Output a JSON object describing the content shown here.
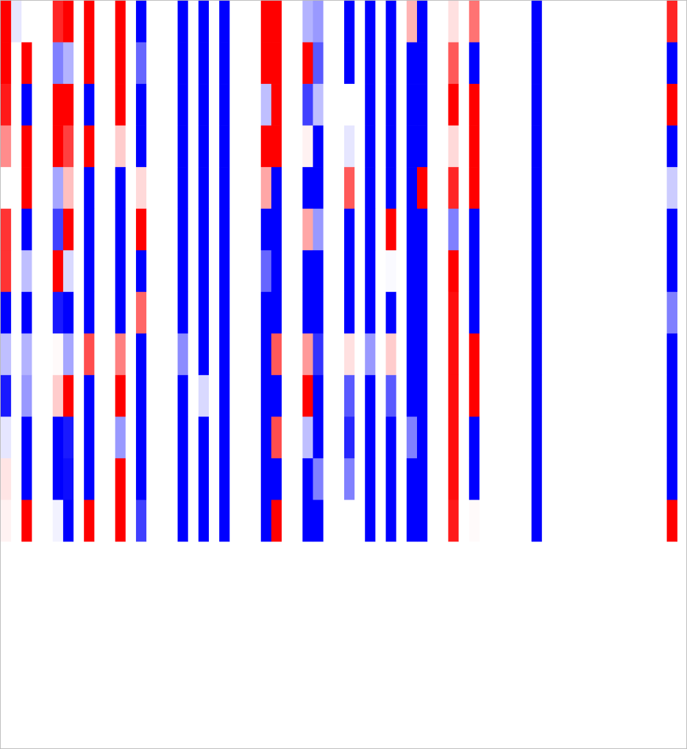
{
  "chart_data": {
    "type": "heatmap",
    "colormap": [
      "#0000ff",
      "#ffffff",
      "#ff0000"
    ],
    "clim": [
      -1,
      1
    ],
    "z": [
      [
        1,
        -0.1,
        0,
        0,
        0,
        0.85,
        1,
        0,
        1,
        0,
        0,
        1,
        0,
        -1,
        0,
        0,
        0,
        -1,
        0,
        -1,
        0,
        -1,
        0,
        0,
        0,
        1,
        1,
        0,
        0,
        -0.3,
        -0.4,
        0,
        0,
        -1,
        0,
        -1,
        0,
        -1,
        0,
        0.3,
        -1,
        0,
        0,
        0.12,
        0,
        0.55,
        0,
        0,
        0,
        0,
        0,
        -1,
        0,
        0,
        0,
        0,
        0,
        0,
        0,
        0,
        0,
        0,
        0,
        0,
        0.85
      ],
      [
        1,
        0,
        1,
        0,
        0,
        -0.5,
        -0.3,
        0,
        1,
        0,
        0,
        1,
        0,
        -0.6,
        0,
        0,
        0,
        -1,
        0,
        -1,
        0,
        -1,
        0,
        0,
        0,
        1,
        1,
        0,
        0,
        1,
        -0.65,
        0,
        0,
        -1,
        0,
        -1,
        0,
        -1,
        0,
        -1,
        -1,
        0,
        0,
        0.65,
        0,
        -1,
        0,
        0,
        0,
        0,
        0,
        -1,
        0,
        0,
        0,
        0,
        0,
        0,
        0,
        0,
        0,
        0,
        0,
        0,
        -1
      ],
      [
        0.9,
        0,
        -1,
        0,
        0,
        1,
        1,
        0,
        -1,
        0,
        0,
        1,
        0,
        -1,
        0,
        0,
        0,
        -1,
        0,
        -1,
        0,
        -1,
        0,
        0,
        0,
        -0.25,
        1,
        0,
        0,
        -0.75,
        -0.25,
        0,
        0,
        0,
        0,
        -1,
        0,
        -1,
        0,
        -1,
        -1,
        0,
        0,
        1,
        0,
        1,
        0,
        0,
        0,
        0,
        0,
        -1,
        0,
        0,
        0,
        0,
        0,
        0,
        0,
        0,
        0,
        0,
        0,
        0,
        1
      ],
      [
        0.45,
        0,
        1,
        0,
        0,
        1,
        0.75,
        0,
        1,
        0,
        0,
        0.2,
        0,
        -1,
        0,
        0,
        0,
        -1,
        0,
        -1,
        0,
        -1,
        0,
        0,
        0,
        1,
        1,
        0,
        0,
        0.05,
        -1,
        0,
        0,
        -0.1,
        0,
        -1,
        0,
        -1,
        0,
        -1,
        -1,
        0,
        0,
        0.15,
        0,
        1,
        0,
        0,
        0,
        0,
        0,
        -1,
        0,
        0,
        0,
        0,
        0,
        0,
        0,
        0,
        0,
        0,
        0,
        0,
        -1
      ],
      [
        0,
        0,
        1,
        0,
        0,
        -0.35,
        0.25,
        0,
        -1,
        0,
        0,
        -1,
        0,
        0.15,
        0,
        0,
        0,
        -1,
        0,
        -1,
        0,
        -1,
        0,
        0,
        0,
        0.35,
        -1,
        0,
        0,
        -1,
        -1,
        0,
        0,
        0.65,
        0,
        -1,
        0,
        -1,
        0,
        -1,
        1,
        0,
        0,
        0.85,
        0,
        1,
        0,
        0,
        0,
        0,
        0,
        -1,
        0,
        0,
        0,
        0,
        0,
        0,
        0,
        0,
        0,
        0,
        0,
        0,
        -0.2
      ],
      [
        0.8,
        0,
        -1,
        0,
        0,
        -0.75,
        1,
        0,
        -1,
        0,
        0,
        -1,
        0,
        1,
        0,
        0,
        0,
        -1,
        0,
        -1,
        0,
        -1,
        0,
        0,
        0,
        -1,
        -1,
        0,
        0,
        0.35,
        -0.4,
        0,
        0,
        -1,
        0,
        -1,
        0,
        1,
        0,
        -1,
        -1,
        0,
        0,
        -0.5,
        0,
        -1,
        0,
        0,
        0,
        0,
        0,
        -1,
        0,
        0,
        0,
        0,
        0,
        0,
        0,
        0,
        0,
        0,
        0,
        0,
        -1
      ],
      [
        0.8,
        0,
        -0.25,
        0,
        0,
        1,
        -0.15,
        0,
        -1,
        0,
        0,
        -1,
        0,
        -1,
        0,
        0,
        0,
        -1,
        0,
        -1,
        0,
        -1,
        0,
        0,
        0,
        -0.6,
        -1,
        0,
        0,
        -1,
        -1,
        0,
        0,
        -1,
        0,
        -1,
        0,
        -0.02,
        0,
        -1,
        -1,
        0,
        0,
        1,
        0,
        -1,
        0,
        0,
        0,
        0,
        0,
        -1,
        0,
        0,
        0,
        0,
        0,
        0,
        0,
        0,
        0,
        0,
        0,
        0,
        -1
      ],
      [
        -1,
        0,
        -1,
        0,
        0,
        -0.9,
        -1,
        0,
        -1,
        0,
        0,
        -1,
        0,
        0.6,
        0,
        0,
        0,
        -1,
        0,
        -1,
        0,
        -1,
        0,
        0,
        0,
        -1,
        -1,
        0,
        0,
        -1,
        -1,
        0,
        0,
        -1,
        0,
        -1,
        0,
        -1,
        0,
        -1,
        -1,
        0,
        0,
        0.95,
        0,
        -1,
        0,
        0,
        0,
        0,
        0,
        -1,
        0,
        0,
        0,
        0,
        0,
        0,
        0,
        0,
        0,
        0,
        0,
        0,
        -0.5
      ],
      [
        -0.25,
        0,
        -0.3,
        0,
        0,
        0.02,
        -0.35,
        0,
        0.7,
        0,
        0,
        0.5,
        0,
        -1,
        0,
        0,
        0,
        -0.45,
        0,
        -1,
        0,
        -1,
        0,
        0,
        0,
        -1,
        0.65,
        0,
        0,
        0.4,
        -0.8,
        0,
        0,
        0.12,
        0,
        -0.4,
        0,
        0.2,
        0,
        -1,
        -1,
        0,
        0,
        0.95,
        0,
        1,
        0,
        0,
        0,
        0,
        0,
        -1,
        0,
        0,
        0,
        0,
        0,
        0,
        0,
        0,
        0,
        0,
        0,
        0,
        -1
      ],
      [
        -0.9,
        0,
        -0.4,
        0,
        0,
        0.2,
        1,
        0,
        -1,
        0,
        0,
        1,
        0,
        -1,
        0,
        0,
        0,
        -1,
        0,
        -0.15,
        0,
        -1,
        0,
        0,
        0,
        -1,
        -1,
        0,
        0,
        1,
        -1,
        0,
        0,
        -0.65,
        0,
        -1,
        0,
        -0.65,
        0,
        -1,
        -1,
        0,
        0,
        0.95,
        0,
        1,
        0,
        0,
        0,
        0,
        0,
        -1,
        0,
        0,
        0,
        0,
        0,
        0,
        0,
        0,
        0,
        0,
        0,
        0,
        -1
      ],
      [
        -0.1,
        0,
        -1,
        0,
        0,
        -1,
        -0.9,
        0,
        -1,
        0,
        0,
        -0.4,
        0,
        -1,
        0,
        0,
        0,
        -1,
        0,
        -1,
        0,
        -1,
        0,
        0,
        0,
        -1,
        0.7,
        0,
        0,
        -0.25,
        -1,
        0,
        0,
        -0.85,
        0,
        -1,
        0,
        -1,
        0,
        -0.5,
        -1,
        0,
        0,
        0.95,
        0,
        -1,
        0,
        0,
        0,
        0,
        0,
        -1,
        0,
        0,
        0,
        0,
        0,
        0,
        0,
        0,
        0,
        0,
        0,
        0,
        -1
      ],
      [
        0.1,
        0,
        -1,
        0,
        0,
        -1,
        -0.95,
        0,
        -1,
        0,
        0,
        1,
        0,
        -1,
        0,
        0,
        0,
        -1,
        0,
        -1,
        0,
        -1,
        0,
        0,
        0,
        -1,
        -1,
        0,
        0,
        -1,
        -0.5,
        0,
        0,
        -0.5,
        0,
        -1,
        0,
        -1,
        0,
        -1,
        -1,
        0,
        0,
        0.95,
        0,
        -1,
        0,
        0,
        0,
        0,
        0,
        -1,
        0,
        0,
        0,
        0,
        0,
        0,
        0,
        0,
        0,
        0,
        0,
        0,
        -1
      ],
      [
        0.05,
        0,
        1,
        0,
        0,
        -0.05,
        -1,
        0,
        1,
        0,
        0,
        1,
        0,
        -0.75,
        0,
        0,
        0,
        -1,
        0,
        -1,
        0,
        -1,
        0,
        0,
        0,
        -1,
        1,
        0,
        0,
        -1,
        -1,
        0,
        0,
        0,
        0,
        -1,
        0,
        -1,
        0,
        -1,
        -1,
        0,
        0,
        0.9,
        0,
        0.02,
        0,
        0,
        0,
        0,
        0,
        -1,
        0,
        0,
        0,
        0,
        0,
        0,
        0,
        0,
        0,
        0,
        0,
        0,
        1
      ]
    ]
  }
}
